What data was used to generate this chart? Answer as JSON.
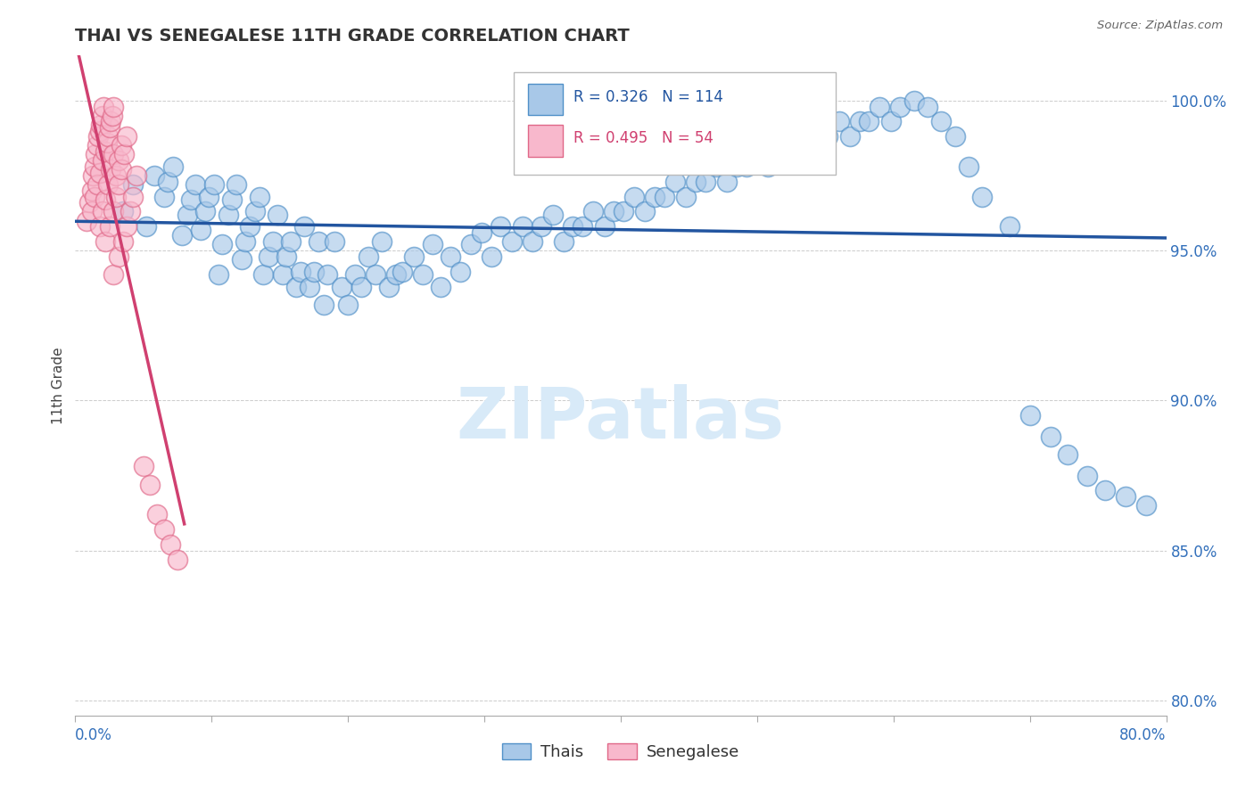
{
  "title": "THAI VS SENEGALESE 11TH GRADE CORRELATION CHART",
  "source": "Source: ZipAtlas.com",
  "ylabel": "11th Grade",
  "xlim": [
    0.0,
    0.8
  ],
  "ylim": [
    0.795,
    1.015
  ],
  "y_ticks": [
    0.8,
    0.85,
    0.9,
    0.95,
    1.0
  ],
  "y_tick_labels": [
    "80.0%",
    "85.0%",
    "90.0%",
    "95.0%",
    "100.0%"
  ],
  "thai_R": 0.326,
  "thai_N": 114,
  "senegalese_R": 0.495,
  "senegalese_N": 54,
  "thai_fill_color": "#a8c8e8",
  "thai_edge_color": "#5090c8",
  "thai_line_color": "#2255a0",
  "senegalese_fill_color": "#f8b8cc",
  "senegalese_edge_color": "#e06888",
  "senegalese_line_color": "#d04070",
  "watermark_color": "#d8eaf8",
  "thai_x": [
    0.035,
    0.042,
    0.052,
    0.058,
    0.065,
    0.068,
    0.072,
    0.078,
    0.082,
    0.085,
    0.088,
    0.092,
    0.095,
    0.098,
    0.102,
    0.105,
    0.108,
    0.112,
    0.115,
    0.118,
    0.122,
    0.125,
    0.128,
    0.132,
    0.135,
    0.138,
    0.142,
    0.145,
    0.148,
    0.152,
    0.155,
    0.158,
    0.162,
    0.165,
    0.168,
    0.172,
    0.175,
    0.178,
    0.182,
    0.185,
    0.19,
    0.195,
    0.2,
    0.205,
    0.21,
    0.215,
    0.22,
    0.225,
    0.23,
    0.235,
    0.24,
    0.248,
    0.255,
    0.262,
    0.268,
    0.275,
    0.282,
    0.29,
    0.298,
    0.305,
    0.312,
    0.32,
    0.328,
    0.335,
    0.342,
    0.35,
    0.358,
    0.365,
    0.372,
    0.38,
    0.388,
    0.395,
    0.402,
    0.41,
    0.418,
    0.425,
    0.432,
    0.44,
    0.448,
    0.455,
    0.462,
    0.47,
    0.478,
    0.485,
    0.492,
    0.5,
    0.508,
    0.515,
    0.522,
    0.53,
    0.538,
    0.545,
    0.552,
    0.56,
    0.568,
    0.575,
    0.582,
    0.59,
    0.598,
    0.605,
    0.615,
    0.625,
    0.635,
    0.645,
    0.655,
    0.665,
    0.685,
    0.7,
    0.715,
    0.728,
    0.742,
    0.755,
    0.77,
    0.785
  ],
  "thai_y": [
    0.963,
    0.972,
    0.958,
    0.975,
    0.968,
    0.973,
    0.978,
    0.955,
    0.962,
    0.967,
    0.972,
    0.957,
    0.963,
    0.968,
    0.972,
    0.942,
    0.952,
    0.962,
    0.967,
    0.972,
    0.947,
    0.953,
    0.958,
    0.963,
    0.968,
    0.942,
    0.948,
    0.953,
    0.962,
    0.942,
    0.948,
    0.953,
    0.938,
    0.943,
    0.958,
    0.938,
    0.943,
    0.953,
    0.932,
    0.942,
    0.953,
    0.938,
    0.932,
    0.942,
    0.938,
    0.948,
    0.942,
    0.953,
    0.938,
    0.942,
    0.943,
    0.948,
    0.942,
    0.952,
    0.938,
    0.948,
    0.943,
    0.952,
    0.956,
    0.948,
    0.958,
    0.953,
    0.958,
    0.953,
    0.958,
    0.962,
    0.953,
    0.958,
    0.958,
    0.963,
    0.958,
    0.963,
    0.963,
    0.968,
    0.963,
    0.968,
    0.968,
    0.973,
    0.968,
    0.973,
    0.973,
    0.978,
    0.973,
    0.978,
    0.978,
    0.983,
    0.978,
    0.983,
    0.983,
    0.988,
    0.983,
    0.988,
    0.988,
    0.993,
    0.988,
    0.993,
    0.993,
    0.998,
    0.993,
    0.998,
    1.0,
    0.998,
    0.993,
    0.988,
    0.978,
    0.968,
    0.958,
    0.895,
    0.888,
    0.882,
    0.875,
    0.87,
    0.868,
    0.865
  ],
  "senegalese_x": [
    0.008,
    0.01,
    0.012,
    0.013,
    0.014,
    0.015,
    0.016,
    0.017,
    0.018,
    0.019,
    0.02,
    0.021,
    0.012,
    0.014,
    0.016,
    0.018,
    0.02,
    0.022,
    0.023,
    0.024,
    0.025,
    0.026,
    0.027,
    0.028,
    0.018,
    0.02,
    0.022,
    0.024,
    0.026,
    0.028,
    0.03,
    0.032,
    0.034,
    0.022,
    0.025,
    0.028,
    0.03,
    0.032,
    0.034,
    0.036,
    0.038,
    0.028,
    0.032,
    0.035,
    0.038,
    0.04,
    0.042,
    0.045,
    0.05,
    0.055,
    0.06,
    0.065,
    0.07,
    0.075
  ],
  "senegalese_y": [
    0.96,
    0.966,
    0.97,
    0.975,
    0.978,
    0.982,
    0.985,
    0.988,
    0.99,
    0.992,
    0.995,
    0.998,
    0.963,
    0.968,
    0.972,
    0.976,
    0.98,
    0.983,
    0.986,
    0.988,
    0.991,
    0.993,
    0.995,
    0.998,
    0.958,
    0.963,
    0.967,
    0.972,
    0.977,
    0.982,
    0.975,
    0.98,
    0.985,
    0.953,
    0.958,
    0.963,
    0.968,
    0.972,
    0.977,
    0.982,
    0.988,
    0.942,
    0.948,
    0.953,
    0.958,
    0.963,
    0.968,
    0.975,
    0.878,
    0.872,
    0.862,
    0.857,
    0.852,
    0.847
  ]
}
